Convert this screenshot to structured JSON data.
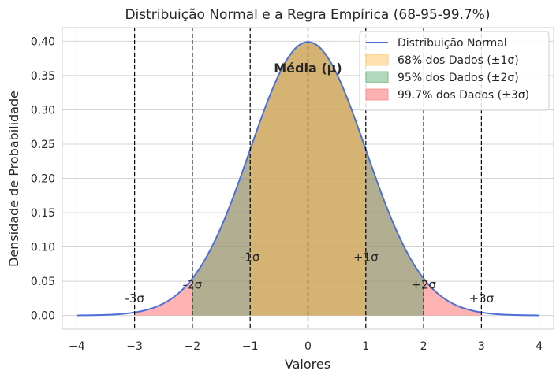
{
  "chart_data": {
    "type": "area",
    "title": "Distribuição Normal e a Regra Empírica (68-95-99.7%)",
    "xlabel": "Valores",
    "ylabel": "Densidade de Probabilidade",
    "xlim": [
      -4.25,
      4.25
    ],
    "ylim": [
      -0.02,
      0.42
    ],
    "xticks": [
      -4,
      -3,
      -2,
      -1,
      0,
      1,
      2,
      3,
      4
    ],
    "xtick_labels": [
      "−4",
      "−3",
      "−2",
      "−1",
      "0",
      "1",
      "2",
      "3",
      "4"
    ],
    "yticks": [
      0.0,
      0.05,
      0.1,
      0.15,
      0.2,
      0.25,
      0.3,
      0.35,
      0.4
    ],
    "ytick_labels": [
      "0.00",
      "0.05",
      "0.10",
      "0.15",
      "0.20",
      "0.25",
      "0.30",
      "0.35",
      "0.40"
    ],
    "grid": true,
    "legend_position": "top-right",
    "curve": {
      "name": "Distribuição Normal",
      "color": "#4c6fd8",
      "mean": 0,
      "std": 1,
      "x_range": [
        -4,
        4
      ]
    },
    "bands": [
      {
        "name": "99.7% dos Dados (±3σ)",
        "range": [
          -3,
          3
        ],
        "color": "#ff7f7f",
        "opacity": 0.6
      },
      {
        "name": "95% dos Dados (±2σ)",
        "range": [
          -2,
          2
        ],
        "color": "#55a868",
        "opacity": 0.45
      },
      {
        "name": "68% dos Dados (±1σ)",
        "range": [
          -1,
          1
        ],
        "color": "#ffbd50",
        "opacity": 0.45
      }
    ],
    "legend_order": [
      "Distribuição Normal",
      "68% dos Dados (±1σ)",
      "95% dos Dados (±2σ)",
      "99.7% dos Dados (±3σ)"
    ],
    "vlines": [
      -3,
      -2,
      -1,
      0,
      1,
      2,
      3
    ],
    "annotations": [
      {
        "text": "Média (μ)",
        "x": 0,
        "y": 0.36,
        "bold": true
      },
      {
        "text": "-1σ",
        "x": -1,
        "y": 0.085
      },
      {
        "text": "+1σ",
        "x": 1,
        "y": 0.085
      },
      {
        "text": "-2σ",
        "x": -2,
        "y": 0.045
      },
      {
        "text": "+2σ",
        "x": 2,
        "y": 0.045
      },
      {
        "text": "-3σ",
        "x": -3,
        "y": 0.025
      },
      {
        "text": "+3σ",
        "x": 3,
        "y": 0.025
      }
    ]
  }
}
